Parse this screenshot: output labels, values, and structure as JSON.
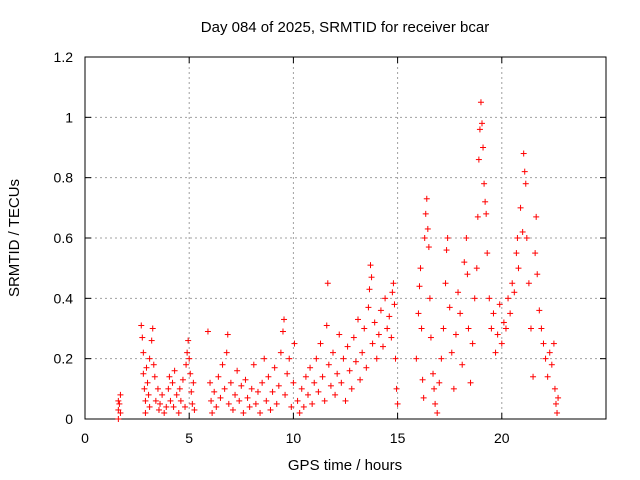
{
  "chart_data": {
    "type": "scatter",
    "title": "Day 084 of 2025, SRMTID for receiver bcar",
    "xlabel": "GPS time / hours",
    "ylabel": "SRMTID / TECUs",
    "xlim": [
      0,
      25
    ],
    "ylim": [
      0,
      1.2
    ],
    "x_ticks": [
      0,
      5,
      10,
      15,
      20
    ],
    "y_ticks": [
      0,
      0.2,
      0.4,
      0.6,
      0.8,
      1,
      1.2
    ],
    "x_tick_labels": [
      "0",
      "5",
      "10",
      "15",
      "20"
    ],
    "y_tick_labels": [
      "0",
      "0.2",
      "0.4",
      "0.6",
      "0.8",
      "1",
      "1.2"
    ],
    "grid": true,
    "marker": "+",
    "color": "#ff0000",
    "series": [
      {
        "name": "SRMTID",
        "points": [
          [
            1.6,
            0.0
          ],
          [
            1.6,
            0.03
          ],
          [
            1.6,
            0.06
          ],
          [
            1.7,
            0.08
          ],
          [
            1.7,
            0.02
          ],
          [
            1.65,
            0.05
          ],
          [
            2.7,
            0.31
          ],
          [
            2.75,
            0.27
          ],
          [
            2.8,
            0.22
          ],
          [
            2.8,
            0.15
          ],
          [
            2.85,
            0.1
          ],
          [
            2.9,
            0.06
          ],
          [
            2.9,
            0.02
          ],
          [
            2.95,
            0.17
          ],
          [
            3.0,
            0.12
          ],
          [
            3.05,
            0.08
          ],
          [
            3.1,
            0.04
          ],
          [
            3.1,
            0.2
          ],
          [
            3.2,
            0.26
          ],
          [
            3.25,
            0.3
          ],
          [
            3.3,
            0.18
          ],
          [
            3.35,
            0.14
          ],
          [
            3.4,
            0.06
          ],
          [
            3.5,
            0.1
          ],
          [
            3.55,
            0.03
          ],
          [
            3.6,
            0.05
          ],
          [
            3.7,
            0.08
          ],
          [
            3.8,
            0.02
          ],
          [
            3.9,
            0.04
          ],
          [
            4.0,
            0.1
          ],
          [
            4.05,
            0.14
          ],
          [
            4.1,
            0.06
          ],
          [
            4.2,
            0.12
          ],
          [
            4.25,
            0.04
          ],
          [
            4.3,
            0.16
          ],
          [
            4.4,
            0.08
          ],
          [
            4.5,
            0.02
          ],
          [
            4.55,
            0.1
          ],
          [
            4.6,
            0.06
          ],
          [
            4.7,
            0.13
          ],
          [
            4.8,
            0.04
          ],
          [
            4.85,
            0.18
          ],
          [
            4.9,
            0.22
          ],
          [
            4.95,
            0.26
          ],
          [
            5.0,
            0.2
          ],
          [
            5.05,
            0.15
          ],
          [
            5.1,
            0.09
          ],
          [
            5.15,
            0.05
          ],
          [
            5.2,
            0.12
          ],
          [
            5.25,
            0.03
          ],
          [
            5.9,
            0.29
          ],
          [
            6.0,
            0.12
          ],
          [
            6.05,
            0.06
          ],
          [
            6.1,
            0.02
          ],
          [
            6.2,
            0.09
          ],
          [
            6.3,
            0.04
          ],
          [
            6.4,
            0.14
          ],
          [
            6.5,
            0.07
          ],
          [
            6.6,
            0.18
          ],
          [
            6.7,
            0.1
          ],
          [
            6.8,
            0.22
          ],
          [
            6.85,
            0.28
          ],
          [
            6.9,
            0.05
          ],
          [
            7.0,
            0.12
          ],
          [
            7.1,
            0.03
          ],
          [
            7.2,
            0.08
          ],
          [
            7.3,
            0.16
          ],
          [
            7.4,
            0.06
          ],
          [
            7.5,
            0.11
          ],
          [
            7.6,
            0.02
          ],
          [
            7.7,
            0.13
          ],
          [
            7.8,
            0.07
          ],
          [
            7.9,
            0.04
          ],
          [
            8.0,
            0.1
          ],
          [
            8.1,
            0.18
          ],
          [
            8.2,
            0.05
          ],
          [
            8.3,
            0.09
          ],
          [
            8.4,
            0.02
          ],
          [
            8.5,
            0.12
          ],
          [
            8.6,
            0.2
          ],
          [
            8.7,
            0.06
          ],
          [
            8.8,
            0.14
          ],
          [
            8.9,
            0.03
          ],
          [
            9.0,
            0.09
          ],
          [
            9.1,
            0.17
          ],
          [
            9.2,
            0.05
          ],
          [
            9.3,
            0.11
          ],
          [
            9.4,
            0.22
          ],
          [
            9.5,
            0.29
          ],
          [
            9.55,
            0.33
          ],
          [
            9.6,
            0.08
          ],
          [
            9.7,
            0.15
          ],
          [
            9.8,
            0.2
          ],
          [
            9.9,
            0.04
          ],
          [
            10.0,
            0.12
          ],
          [
            10.05,
            0.25
          ],
          [
            10.2,
            0.06
          ],
          [
            10.3,
            0.02
          ],
          [
            10.4,
            0.1
          ],
          [
            10.5,
            0.04
          ],
          [
            10.6,
            0.14
          ],
          [
            10.7,
            0.08
          ],
          [
            10.8,
            0.17
          ],
          [
            10.9,
            0.05
          ],
          [
            11.0,
            0.12
          ],
          [
            11.1,
            0.2
          ],
          [
            11.2,
            0.09
          ],
          [
            11.3,
            0.25
          ],
          [
            11.4,
            0.14
          ],
          [
            11.5,
            0.06
          ],
          [
            11.6,
            0.31
          ],
          [
            11.65,
            0.45
          ],
          [
            11.7,
            0.18
          ],
          [
            11.8,
            0.11
          ],
          [
            11.9,
            0.22
          ],
          [
            12.0,
            0.08
          ],
          [
            12.1,
            0.15
          ],
          [
            12.2,
            0.28
          ],
          [
            12.3,
            0.12
          ],
          [
            12.4,
            0.2
          ],
          [
            12.5,
            0.06
          ],
          [
            12.6,
            0.24
          ],
          [
            12.7,
            0.16
          ],
          [
            12.8,
            0.1
          ],
          [
            12.9,
            0.27
          ],
          [
            13.0,
            0.19
          ],
          [
            13.1,
            0.33
          ],
          [
            13.2,
            0.13
          ],
          [
            13.3,
            0.22
          ],
          [
            13.4,
            0.3
          ],
          [
            13.5,
            0.17
          ],
          [
            13.6,
            0.37
          ],
          [
            13.65,
            0.43
          ],
          [
            13.7,
            0.51
          ],
          [
            13.75,
            0.47
          ],
          [
            13.8,
            0.25
          ],
          [
            13.9,
            0.32
          ],
          [
            14.0,
            0.2
          ],
          [
            14.1,
            0.28
          ],
          [
            14.2,
            0.36
          ],
          [
            14.3,
            0.24
          ],
          [
            14.4,
            0.4
          ],
          [
            14.5,
            0.3
          ],
          [
            14.6,
            0.34
          ],
          [
            14.7,
            0.27
          ],
          [
            14.75,
            0.42
          ],
          [
            14.8,
            0.45
          ],
          [
            14.85,
            0.38
          ],
          [
            14.9,
            0.2
          ],
          [
            14.95,
            0.1
          ],
          [
            15.0,
            0.05
          ],
          [
            15.9,
            0.2
          ],
          [
            16.0,
            0.35
          ],
          [
            16.05,
            0.44
          ],
          [
            16.1,
            0.5
          ],
          [
            16.15,
            0.3
          ],
          [
            16.2,
            0.13
          ],
          [
            16.25,
            0.07
          ],
          [
            16.3,
            0.6
          ],
          [
            16.35,
            0.68
          ],
          [
            16.4,
            0.73
          ],
          [
            16.45,
            0.63
          ],
          [
            16.5,
            0.57
          ],
          [
            16.55,
            0.4
          ],
          [
            16.6,
            0.27
          ],
          [
            16.7,
            0.15
          ],
          [
            16.75,
            0.1
          ],
          [
            16.8,
            0.05
          ],
          [
            16.9,
            0.02
          ],
          [
            17.0,
            0.12
          ],
          [
            17.1,
            0.2
          ],
          [
            17.2,
            0.3
          ],
          [
            17.3,
            0.45
          ],
          [
            17.35,
            0.56
          ],
          [
            17.4,
            0.6
          ],
          [
            17.5,
            0.37
          ],
          [
            17.6,
            0.22
          ],
          [
            17.7,
            0.1
          ],
          [
            17.8,
            0.28
          ],
          [
            17.9,
            0.42
          ],
          [
            18.0,
            0.35
          ],
          [
            18.1,
            0.18
          ],
          [
            18.2,
            0.52
          ],
          [
            18.3,
            0.6
          ],
          [
            18.35,
            0.48
          ],
          [
            18.4,
            0.3
          ],
          [
            18.5,
            0.12
          ],
          [
            18.6,
            0.25
          ],
          [
            18.7,
            0.4
          ],
          [
            18.8,
            0.5
          ],
          [
            18.85,
            0.67
          ],
          [
            18.9,
            0.86
          ],
          [
            18.95,
            0.96
          ],
          [
            19.0,
            1.05
          ],
          [
            19.05,
            0.98
          ],
          [
            19.1,
            0.9
          ],
          [
            19.15,
            0.78
          ],
          [
            19.2,
            0.72
          ],
          [
            19.25,
            0.68
          ],
          [
            19.3,
            0.55
          ],
          [
            19.4,
            0.4
          ],
          [
            19.5,
            0.3
          ],
          [
            19.6,
            0.35
          ],
          [
            19.7,
            0.22
          ],
          [
            19.8,
            0.28
          ],
          [
            19.9,
            0.38
          ],
          [
            20.0,
            0.25
          ],
          [
            20.1,
            0.32
          ],
          [
            20.2,
            0.3
          ],
          [
            20.3,
            0.4
          ],
          [
            20.4,
            0.35
          ],
          [
            20.5,
            0.45
          ],
          [
            20.6,
            0.42
          ],
          [
            20.7,
            0.55
          ],
          [
            20.75,
            0.6
          ],
          [
            20.8,
            0.5
          ],
          [
            20.9,
            0.7
          ],
          [
            21.0,
            0.62
          ],
          [
            21.05,
            0.88
          ],
          [
            21.1,
            0.82
          ],
          [
            21.15,
            0.78
          ],
          [
            21.2,
            0.6
          ],
          [
            21.3,
            0.45
          ],
          [
            21.4,
            0.3
          ],
          [
            21.5,
            0.14
          ],
          [
            21.6,
            0.55
          ],
          [
            21.65,
            0.67
          ],
          [
            21.7,
            0.48
          ],
          [
            21.8,
            0.36
          ],
          [
            21.9,
            0.3
          ],
          [
            22.0,
            0.25
          ],
          [
            22.1,
            0.2
          ],
          [
            22.2,
            0.14
          ],
          [
            22.3,
            0.22
          ],
          [
            22.4,
            0.18
          ],
          [
            22.5,
            0.25
          ],
          [
            22.55,
            0.1
          ],
          [
            22.6,
            0.05
          ],
          [
            22.65,
            0.02
          ],
          [
            22.7,
            0.07
          ]
        ]
      }
    ]
  }
}
